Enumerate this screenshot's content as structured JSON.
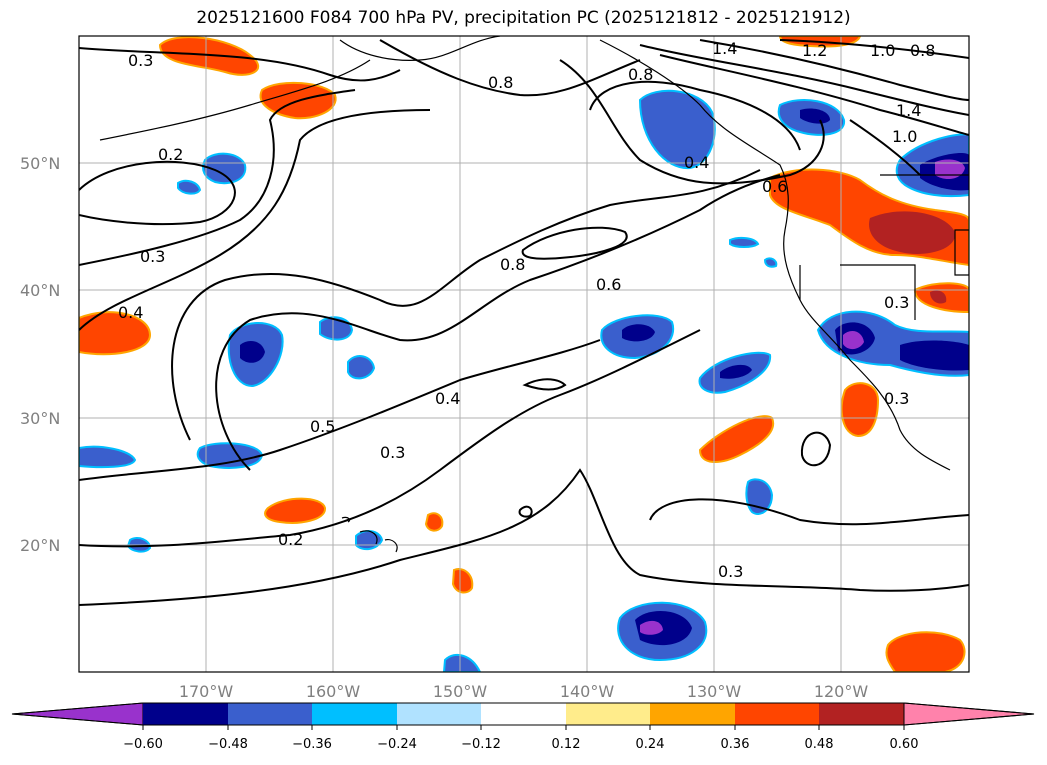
{
  "title": "2025121600 F084 700 hPa PV, precipitation PC (2025121812 - 2025121912)",
  "lat_labels": [
    "50°N",
    "40°N",
    "30°N",
    "20°N"
  ],
  "lon_labels": [
    "170°W",
    "160°W",
    "150°W",
    "140°W",
    "130°W",
    "120°W"
  ],
  "colorbar": {
    "colors": [
      "#9932cc",
      "#00008b",
      "#3a5fcd",
      "#00bfff",
      "#b0e2ff",
      "#ffffff",
      "#ffec8b",
      "#ffa500",
      "#ff4500",
      "#b22222",
      "#ff82ab"
    ],
    "ticks": [
      "−0.60",
      "−0.48",
      "−0.36",
      "−0.24",
      "−0.12",
      "0.12",
      "0.24",
      "0.36",
      "0.48",
      "0.60"
    ]
  },
  "contour_labels": [
    "0.3",
    "0.2",
    "0.3",
    "0.4",
    "0.5",
    "0.3",
    "0.2",
    "0.8",
    "0.8",
    "0.6",
    "0.4",
    "0.8",
    "0.4",
    "0.3",
    "1.4",
    "1.2",
    "1.0",
    "0.8",
    "1.4",
    "1.0",
    "0.6",
    "0.3",
    "0.3"
  ]
}
